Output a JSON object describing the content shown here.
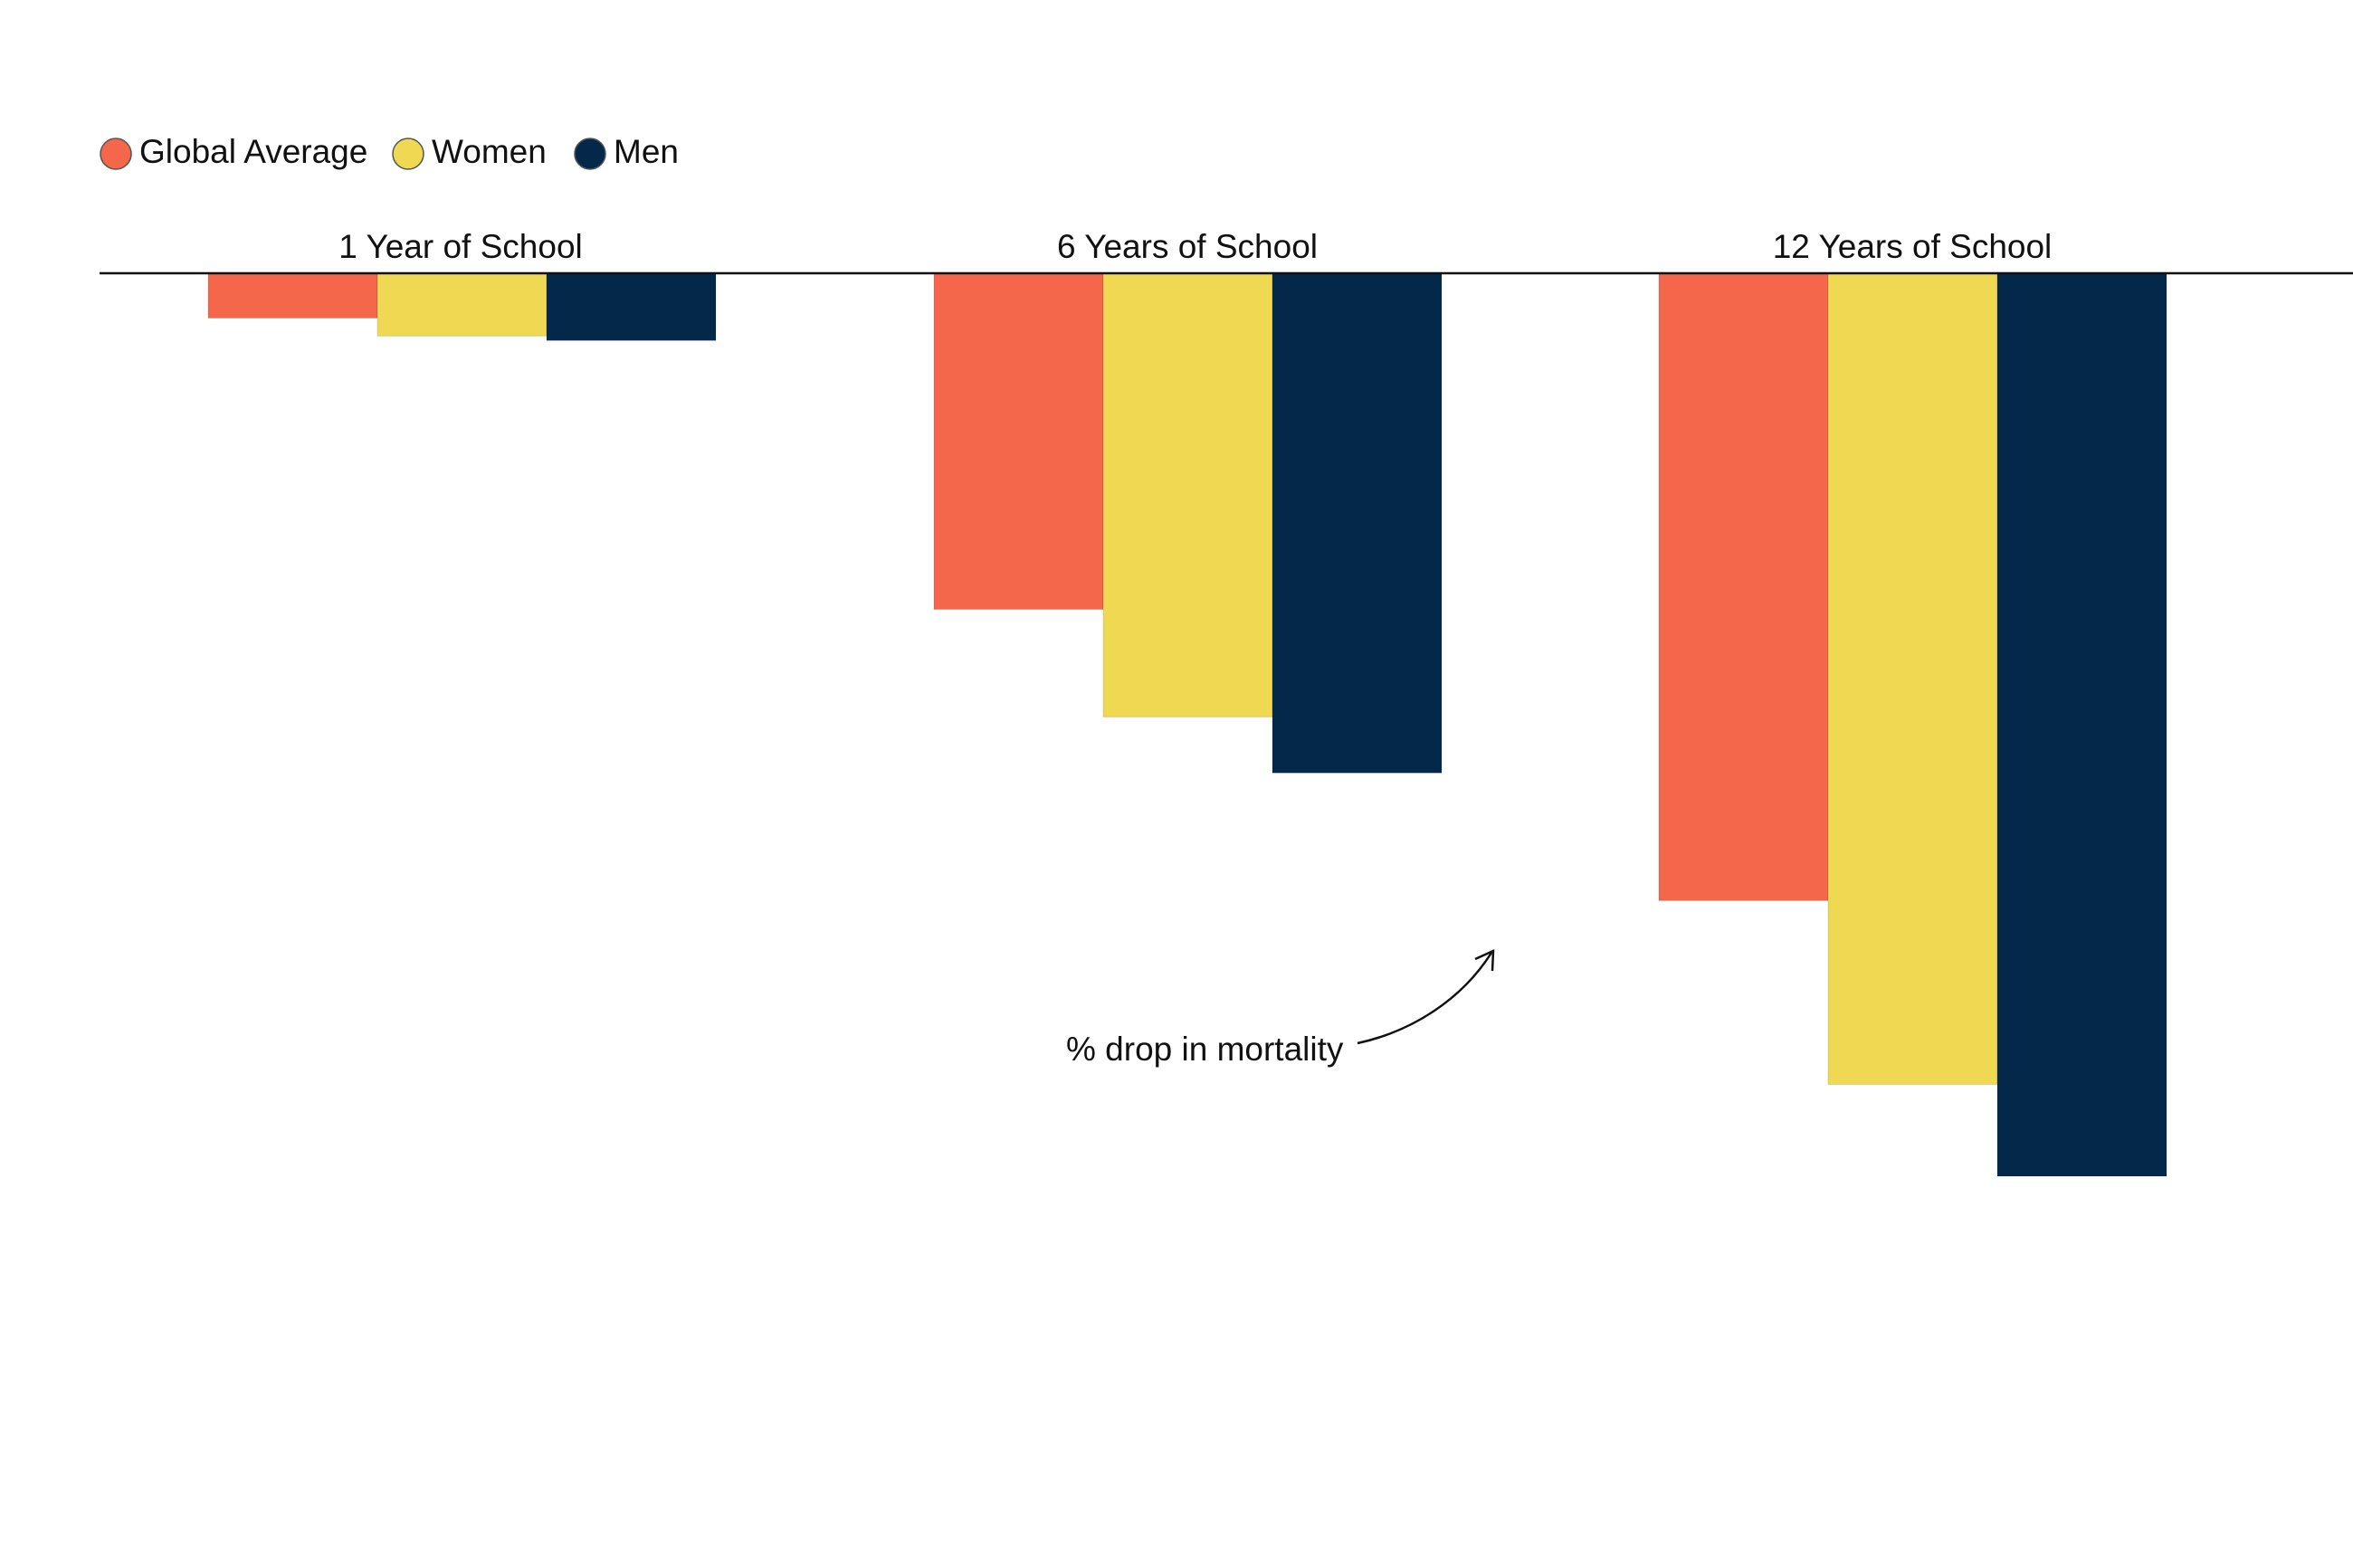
{
  "chart_data": {
    "type": "bar",
    "orientation": "downward",
    "title": "",
    "xlabel": "",
    "ylabel": "",
    "categories": [
      "1 Year of School",
      "6 Years of School",
      "12 Years of School"
    ],
    "series": [
      {
        "name": "Global Average",
        "color": "#F4674A",
        "values": [
          2,
          15,
          28
        ]
      },
      {
        "name": "Women",
        "color": "#EFD953",
        "values": [
          2.8,
          19.8,
          36.2
        ]
      },
      {
        "name": "Men",
        "color": "#03284A",
        "values": [
          3,
          22.3,
          40.3
        ]
      }
    ],
    "ylim": [
      0,
      40.3
    ],
    "legend_position": "top-left",
    "grid": false,
    "annotation": {
      "text": "% drop in mortality",
      "points_to": "bars"
    }
  }
}
